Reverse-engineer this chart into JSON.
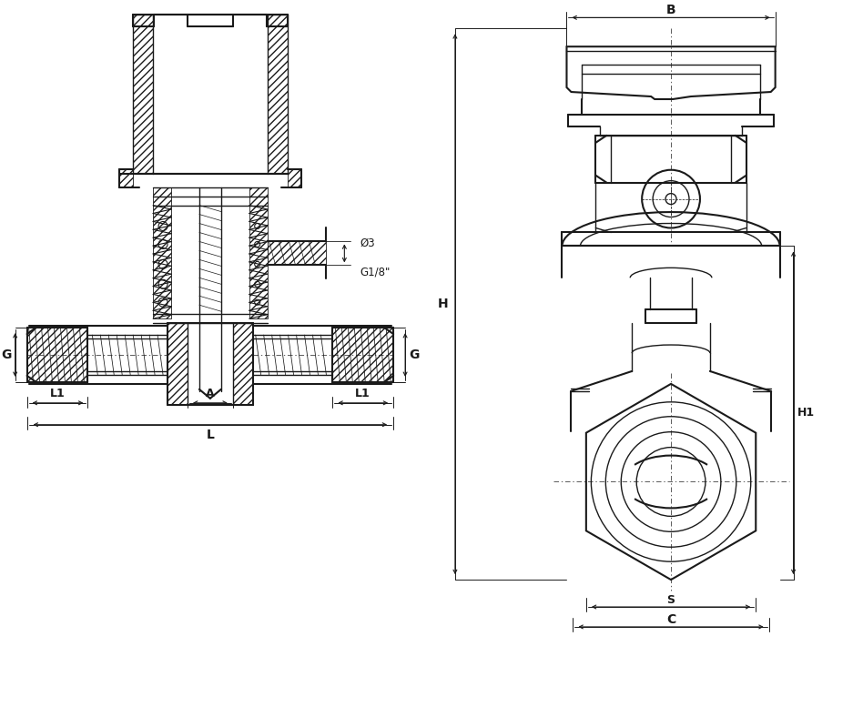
{
  "bg_color": "#ffffff",
  "line_color": "#1a1a1a",
  "fig_width": 9.48,
  "fig_height": 7.77,
  "dpi": 100,
  "labels": {
    "G": "G",
    "L": "L",
    "L1": "L1",
    "A": "A",
    "phi3": "Ø3",
    "G18": "G1/8\"",
    "B": "B",
    "H": "H",
    "H1": "H1",
    "S": "S",
    "C": "C"
  }
}
